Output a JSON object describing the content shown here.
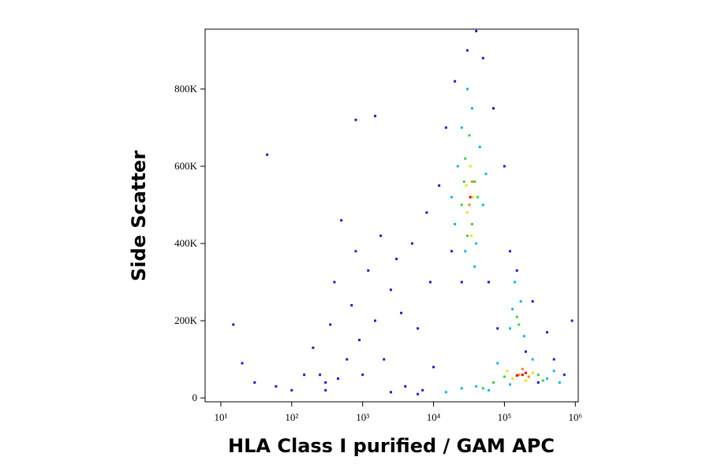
{
  "chart_data": {
    "type": "scatter",
    "xlabel": "HLA Class I purified / GAM APC",
    "ylabel": "Side Scatter",
    "xscale": "log",
    "xlim": [
      6,
      1100000
    ],
    "ylim": [
      -10000,
      955000
    ],
    "xticks": [
      {
        "value": 10,
        "label": "10¹"
      },
      {
        "value": 100,
        "label": "10²"
      },
      {
        "value": 1000,
        "label": "10³"
      },
      {
        "value": 10000,
        "label": "10⁴"
      },
      {
        "value": 100000,
        "label": "10⁵"
      },
      {
        "value": 1000000,
        "label": "10⁶"
      }
    ],
    "yticks": [
      0,
      {
        "value": 200000,
        "label": "200K"
      },
      {
        "value": 400000,
        "label": "400K"
      },
      {
        "value": 600000,
        "label": "600K"
      },
      {
        "value": 800000,
        "label": "800K"
      }
    ],
    "series": [
      {
        "color": "#1a1ad8",
        "x": [
          15,
          20,
          30,
          60,
          100,
          150,
          200,
          250,
          300,
          350,
          400,
          450,
          500,
          600,
          700,
          800,
          900,
          1000,
          1200,
          1500,
          1800,
          2000,
          2500,
          3000,
          3500,
          4000,
          5000,
          6000,
          7000,
          8000,
          9000,
          10000,
          12000,
          15000,
          18000,
          20000,
          25000,
          30000,
          40000,
          50000,
          60000,
          70000,
          80000,
          100000,
          120000,
          150000,
          200000,
          250000,
          300000,
          400000,
          500000,
          700000,
          900000,
          800,
          1500,
          45,
          300,
          2500,
          6000
        ],
        "y": [
          190000,
          90000,
          40000,
          30000,
          20000,
          60000,
          130000,
          60000,
          40000,
          190000,
          300000,
          50000,
          460000,
          100000,
          240000,
          380000,
          150000,
          60000,
          330000,
          200000,
          420000,
          100000,
          280000,
          360000,
          220000,
          30000,
          400000,
          180000,
          20000,
          480000,
          300000,
          80000,
          550000,
          700000,
          380000,
          820000,
          300000,
          900000,
          950000,
          880000,
          300000,
          750000,
          180000,
          600000,
          380000,
          330000,
          120000,
          250000,
          40000,
          170000,
          100000,
          60000,
          200000,
          720000,
          730000,
          630000,
          20000,
          15000,
          10000
        ]
      },
      {
        "color": "#12b4f0",
        "x": [
          20000,
          22000,
          25000,
          28000,
          35000,
          40000,
          45000,
          50000,
          18000,
          30000,
          38000,
          55000,
          15000,
          25000,
          40000,
          60000,
          80000,
          250000,
          400000,
          500000,
          600000,
          120000,
          120000,
          170000,
          140000,
          190000,
          130000
        ],
        "y": [
          450000,
          600000,
          700000,
          380000,
          750000,
          400000,
          650000,
          500000,
          520000,
          800000,
          340000,
          580000,
          15000,
          25000,
          30000,
          20000,
          90000,
          100000,
          50000,
          70000,
          40000,
          35000,
          180000,
          250000,
          300000,
          160000,
          230000
        ]
      },
      {
        "color": "#3cd040",
        "x": [
          25000,
          28000,
          32000,
          35000,
          38000,
          30000,
          42000,
          27000,
          70000,
          100000,
          300000,
          350000,
          50000,
          150000,
          160000
        ],
        "y": [
          500000,
          620000,
          680000,
          450000,
          560000,
          420000,
          520000,
          560000,
          40000,
          55000,
          60000,
          45000,
          25000,
          210000,
          190000
        ]
      },
      {
        "color": "#f0e000",
        "x": [
          30000,
          33000,
          36000,
          29000,
          34000,
          130000,
          250000,
          200000,
          110000
        ],
        "y": [
          480000,
          600000,
          520000,
          550000,
          420000,
          50000,
          65000,
          45000,
          70000
        ]
      },
      {
        "color": "#ff8000",
        "x": [
          32000,
          35000,
          160000,
          220000,
          180000
        ],
        "y": [
          500000,
          560000,
          60000,
          55000,
          75000
        ]
      },
      {
        "color": "#e00000",
        "x": [
          33000,
          180000,
          200000,
          150000
        ],
        "y": [
          520000,
          60000,
          65000,
          58000
        ]
      }
    ]
  }
}
